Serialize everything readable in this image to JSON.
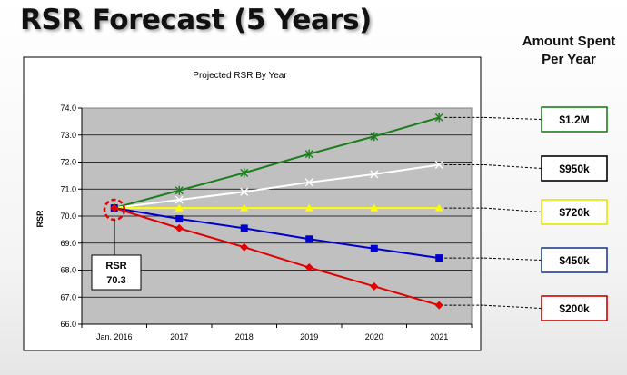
{
  "slide": {
    "title": "RSR Forecast (5 Years)",
    "legend_heading_line1": "Amount Spent",
    "legend_heading_line2": "Per Year"
  },
  "callout": {
    "label": "RSR",
    "value": "70.3"
  },
  "chart_data": {
    "type": "line",
    "title": "Projected RSR By Year",
    "xlabel": "",
    "ylabel": "RSR",
    "categories": [
      "Jan. 2016",
      "2017",
      "2018",
      "2019",
      "2020",
      "2021"
    ],
    "ylim": [
      66.0,
      74.0
    ],
    "ytick_labels": [
      "66.0",
      "67.0",
      "68.0",
      "69.0",
      "70.0",
      "71.0",
      "72.0",
      "73.0",
      "74.0"
    ],
    "grid": true,
    "series": [
      {
        "name": "$1.2M",
        "color": "#1a7f1a",
        "marker": "asterisk",
        "values": [
          70.3,
          70.95,
          71.6,
          72.3,
          72.95,
          73.65
        ]
      },
      {
        "name": "$950k",
        "color": "#ffffff",
        "marker": "x",
        "values": [
          70.3,
          70.6,
          70.9,
          71.25,
          71.55,
          71.9
        ]
      },
      {
        "name": "$720k",
        "color": "#ffff00",
        "marker": "triangle",
        "values": [
          70.3,
          70.3,
          70.3,
          70.3,
          70.3,
          70.3
        ]
      },
      {
        "name": "$450k",
        "color": "#0000cc",
        "marker": "square",
        "values": [
          70.3,
          69.9,
          69.55,
          69.15,
          68.8,
          68.45
        ]
      },
      {
        "name": "$200k",
        "color": "#e00000",
        "marker": "diamond",
        "values": [
          70.3,
          69.55,
          68.85,
          68.1,
          67.4,
          66.7
        ]
      }
    ],
    "legend_boxes": [
      {
        "label": "$1.2M",
        "border": "#1a7f1a"
      },
      {
        "label": "$950k",
        "border": "#000000"
      },
      {
        "label": "$720k",
        "border": "#e6e600"
      },
      {
        "label": "$450k",
        "border": "#1f3f8f"
      },
      {
        "label": "$200k",
        "border": "#cc0000"
      }
    ]
  }
}
